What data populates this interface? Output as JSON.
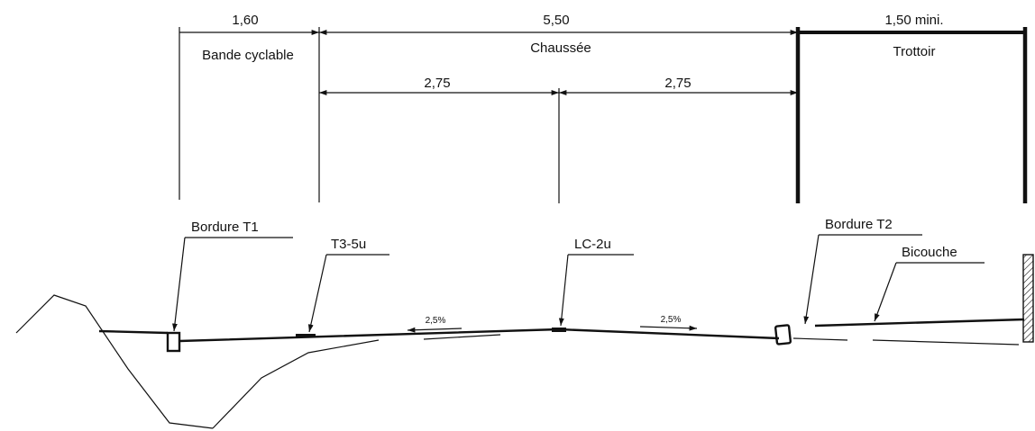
{
  "dimensions": {
    "bike_lane_width": "1,60",
    "roadway_width": "5,50",
    "sidewalk_width": "1,50 mini.",
    "half_lane_left": "2,75",
    "half_lane_right": "2,75"
  },
  "zones": {
    "bike_lane": "Bande cyclable",
    "roadway": "Chaussée",
    "sidewalk": "Trottoir"
  },
  "callouts": {
    "curb_t1": "Bordure T1",
    "marking_t3": "T3-5u",
    "marking_lc": "LC-2u",
    "curb_t2": "Bordure T2",
    "surface": "Bicouche"
  },
  "slopes": {
    "left": "2,5%",
    "right": "2,5%"
  },
  "colors": {
    "line": "#111111",
    "background": "#ffffff"
  }
}
